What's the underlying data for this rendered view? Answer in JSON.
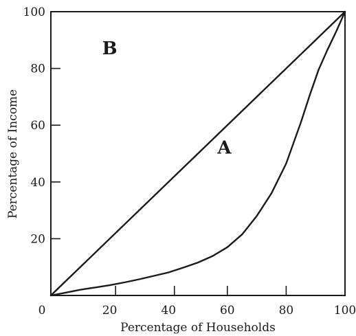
{
  "chart_data": {
    "type": "line",
    "title": "",
    "xlabel": "Percentage of Households",
    "ylabel": "Percentage of Income",
    "xlim": [
      0,
      100
    ],
    "ylim": [
      0,
      100
    ],
    "grid": false,
    "x_ticks": [
      {
        "value": 0,
        "label": "0"
      },
      {
        "value": 20,
        "label": "20"
      },
      {
        "value": 40,
        "label": "40"
      },
      {
        "value": 60,
        "label": "60"
      },
      {
        "value": 80,
        "label": "80"
      },
      {
        "value": 100,
        "label": "100"
      }
    ],
    "x_tick_marks": [
      22,
      42,
      60,
      80
    ],
    "y_ticks": [
      {
        "value": 20,
        "label": "20"
      },
      {
        "value": 40,
        "label": "40"
      },
      {
        "value": 60,
        "label": "60"
      },
      {
        "value": 80,
        "label": "80"
      },
      {
        "value": 100,
        "label": "100"
      }
    ],
    "series": [
      {
        "x": [
          0,
          100
        ],
        "y": [
          0,
          100
        ]
      },
      {
        "x": [
          0,
          5,
          10,
          15,
          20,
          25,
          30,
          35,
          40,
          45,
          50,
          55,
          60,
          65,
          70,
          75,
          80,
          85,
          88,
          91,
          94,
          97,
          100
        ],
        "y": [
          0,
          1.0,
          2.0,
          2.8,
          3.6,
          4.6,
          5.7,
          6.9,
          8.1,
          9.8,
          11.6,
          13.9,
          17.0,
          21.5,
          28.0,
          36.0,
          46.5,
          61.0,
          70.5,
          79.5,
          86.5,
          93.0,
          100
        ]
      }
    ],
    "annotations": [
      {
        "text": "A",
        "x": 59,
        "y": 50
      },
      {
        "text": "B",
        "x": 20,
        "y": 85
      }
    ]
  }
}
